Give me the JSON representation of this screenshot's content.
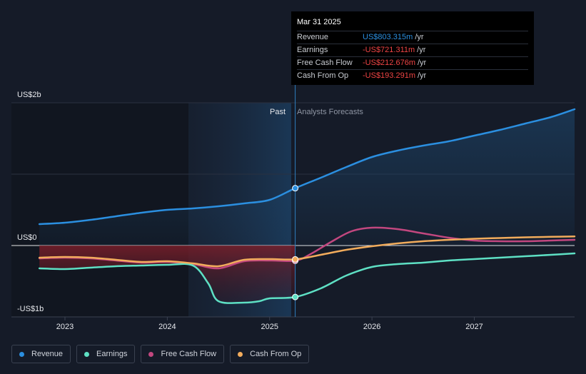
{
  "chart_data": {
    "type": "line",
    "title": "",
    "xlabel": "",
    "ylabel": "",
    "x_ticks": [
      "2023",
      "2024",
      "2025",
      "2026",
      "2027"
    ],
    "y_ticks": [
      {
        "label": "US$2b",
        "value": 2000
      },
      {
        "label": "US$0",
        "value": 0
      },
      {
        "label": "-US$1b",
        "value": -1000
      }
    ],
    "ylim": [
      -1000,
      2000
    ],
    "xlim": [
      2022.7,
      2027.98
    ],
    "divider_x": 2025.25,
    "past_label": "Past",
    "forecast_label": "Analysts Forecasts",
    "series": [
      {
        "name": "Revenue",
        "color": "#2b8fe0",
        "points": [
          [
            2022.75,
            300
          ],
          [
            2023.0,
            320
          ],
          [
            2023.25,
            360
          ],
          [
            2023.5,
            410
          ],
          [
            2023.75,
            460
          ],
          [
            2024.0,
            500
          ],
          [
            2024.25,
            520
          ],
          [
            2024.5,
            550
          ],
          [
            2024.75,
            590
          ],
          [
            2025.0,
            640
          ],
          [
            2025.25,
            803.3
          ],
          [
            2025.5,
            950
          ],
          [
            2025.75,
            1100
          ],
          [
            2026.0,
            1240
          ],
          [
            2026.25,
            1330
          ],
          [
            2026.5,
            1400
          ],
          [
            2026.75,
            1460
          ],
          [
            2027.0,
            1540
          ],
          [
            2027.25,
            1620
          ],
          [
            2027.5,
            1710
          ],
          [
            2027.75,
            1800
          ],
          [
            2027.98,
            1910
          ]
        ]
      },
      {
        "name": "Earnings",
        "color": "#5ee0c4",
        "points": [
          [
            2022.75,
            -320
          ],
          [
            2023.0,
            -330
          ],
          [
            2023.25,
            -310
          ],
          [
            2023.5,
            -290
          ],
          [
            2023.75,
            -280
          ],
          [
            2024.0,
            -270
          ],
          [
            2024.25,
            -280
          ],
          [
            2024.4,
            -530
          ],
          [
            2024.5,
            -780
          ],
          [
            2024.75,
            -800
          ],
          [
            2024.9,
            -780
          ],
          [
            2025.0,
            -740
          ],
          [
            2025.25,
            -721.3
          ],
          [
            2025.5,
            -600
          ],
          [
            2025.75,
            -420
          ],
          [
            2026.0,
            -300
          ],
          [
            2026.25,
            -260
          ],
          [
            2026.5,
            -240
          ],
          [
            2026.75,
            -210
          ],
          [
            2027.0,
            -190
          ],
          [
            2027.25,
            -170
          ],
          [
            2027.5,
            -150
          ],
          [
            2027.75,
            -130
          ],
          [
            2027.98,
            -110
          ]
        ]
      },
      {
        "name": "Free Cash Flow",
        "color": "#c2477f",
        "points": [
          [
            2022.75,
            -180
          ],
          [
            2023.0,
            -170
          ],
          [
            2023.25,
            -180
          ],
          [
            2023.5,
            -210
          ],
          [
            2023.75,
            -240
          ],
          [
            2024.0,
            -230
          ],
          [
            2024.25,
            -260
          ],
          [
            2024.5,
            -320
          ],
          [
            2024.75,
            -220
          ],
          [
            2025.0,
            -210
          ],
          [
            2025.25,
            -212.7
          ],
          [
            2025.4,
            -120
          ],
          [
            2025.6,
            50
          ],
          [
            2025.8,
            200
          ],
          [
            2026.0,
            250
          ],
          [
            2026.25,
            230
          ],
          [
            2026.5,
            170
          ],
          [
            2026.75,
            110
          ],
          [
            2027.0,
            70
          ],
          [
            2027.25,
            60
          ],
          [
            2027.5,
            60
          ],
          [
            2027.75,
            70
          ],
          [
            2027.98,
            80
          ]
        ]
      },
      {
        "name": "Cash From Op",
        "color": "#f2ac5c",
        "points": [
          [
            2022.75,
            -170
          ],
          [
            2023.0,
            -160
          ],
          [
            2023.25,
            -170
          ],
          [
            2023.5,
            -200
          ],
          [
            2023.75,
            -230
          ],
          [
            2024.0,
            -220
          ],
          [
            2024.25,
            -250
          ],
          [
            2024.5,
            -290
          ],
          [
            2024.75,
            -200
          ],
          [
            2025.0,
            -190
          ],
          [
            2025.25,
            -193.3
          ],
          [
            2025.5,
            -130
          ],
          [
            2025.75,
            -60
          ],
          [
            2026.0,
            -10
          ],
          [
            2026.25,
            30
          ],
          [
            2026.5,
            60
          ],
          [
            2026.75,
            80
          ],
          [
            2027.0,
            95
          ],
          [
            2027.25,
            105
          ],
          [
            2027.5,
            115
          ],
          [
            2027.75,
            122
          ],
          [
            2027.98,
            128
          ]
        ]
      }
    ]
  },
  "tooltip": {
    "date": "Mar 31 2025",
    "rows": [
      {
        "label": "Revenue",
        "value": "US$803.315m",
        "unit": "/yr",
        "color": "#2b8fe0"
      },
      {
        "label": "Earnings",
        "value": "-US$721.311m",
        "unit": "/yr",
        "color": "#ef4444"
      },
      {
        "label": "Free Cash Flow",
        "value": "-US$212.676m",
        "unit": "/yr",
        "color": "#ef4444"
      },
      {
        "label": "Cash From Op",
        "value": "-US$193.291m",
        "unit": "/yr",
        "color": "#ef4444"
      }
    ]
  },
  "legend": [
    {
      "label": "Revenue",
      "color": "#2b8fe0"
    },
    {
      "label": "Earnings",
      "color": "#5ee0c4"
    },
    {
      "label": "Free Cash Flow",
      "color": "#c2477f"
    },
    {
      "label": "Cash From Op",
      "color": "#f2ac5c"
    }
  ]
}
